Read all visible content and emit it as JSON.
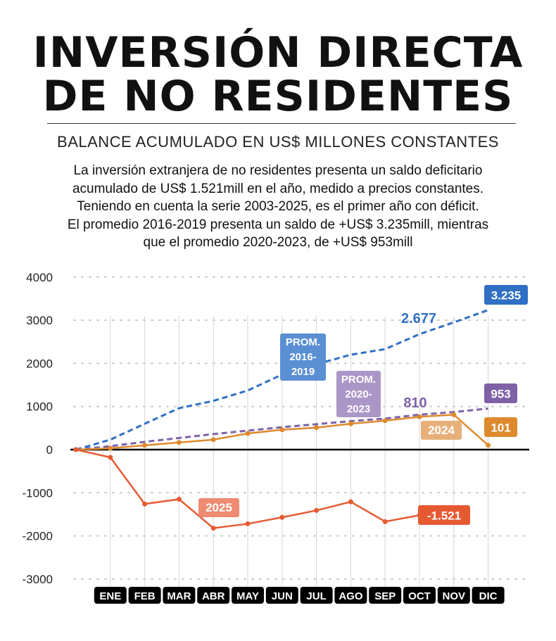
{
  "header": {
    "title_line1": "INVERSIÓN DIRECTA",
    "title_line2": "DE NO RESIDENTES",
    "subtitle": "BALANCE ACUMULADO EN US$ MILLONES CONSTANTES",
    "description": [
      "La inversión extranjera de no residentes presenta un saldo deficitario",
      "acumulado de US$ 1.521mill en el año, medido a precios constantes.",
      "Teniendo en cuenta la serie 2003-2025, es el primer año con déficit.",
      "El promedio 2016-2019 presenta un saldo de +US$ 3.235mill, mientras",
      "que el promedio 2020-2023, de +US$ 953mill"
    ]
  },
  "chart_data": {
    "type": "line",
    "title": "INVERSIÓN DIRECTA DE NO RESIDENTES",
    "ylabel": "US$ millones constantes",
    "xlabel": "",
    "categories": [
      "",
      "ENE",
      "FEB",
      "MAR",
      "ABR",
      "MAY",
      "JUN",
      "JUL",
      "AGO",
      "SEP",
      "OCT",
      "NOV",
      "DIC"
    ],
    "ylim": [
      -3000,
      4000
    ],
    "yticks": [
      "4000",
      "3000",
      "2000",
      "1000",
      "0",
      "-1000",
      "-2000",
      "-3000"
    ],
    "grid": true,
    "series": [
      {
        "name": "PROM. 2016-2019",
        "label": "PROM. 2016-2019",
        "color": "#2f6fc4",
        "dashed": true,
        "values": [
          0,
          230,
          600,
          960,
          1130,
          1370,
          1740,
          1980,
          2200,
          2330,
          2677,
          2950,
          3235
        ],
        "annotations": {
          "mid": "2.677",
          "end": "3.235"
        }
      },
      {
        "name": "PROM. 2020-2023",
        "label": "PROM. 2020-2023",
        "color": "#7e62a8",
        "dashed": true,
        "values": [
          0,
          80,
          180,
          270,
          360,
          440,
          520,
          590,
          660,
          720,
          810,
          870,
          953
        ],
        "annotations": {
          "mid": "810",
          "end": "953"
        }
      },
      {
        "name": "2024",
        "label": "2024",
        "color": "#dd8a2e",
        "dashed": false,
        "values": [
          0,
          30,
          100,
          165,
          230,
          375,
          460,
          510,
          600,
          670,
          760,
          810,
          101
        ],
        "annotations": {
          "end": "101"
        }
      },
      {
        "name": "2025",
        "label": "2025",
        "color": "#e65a32",
        "dashed": false,
        "values": [
          0,
          -180,
          -1260,
          -1150,
          -1820,
          -1720,
          -1570,
          -1410,
          -1210,
          -1670,
          -1521,
          null,
          null
        ],
        "annotations": {
          "end": "-1.521"
        }
      }
    ]
  }
}
